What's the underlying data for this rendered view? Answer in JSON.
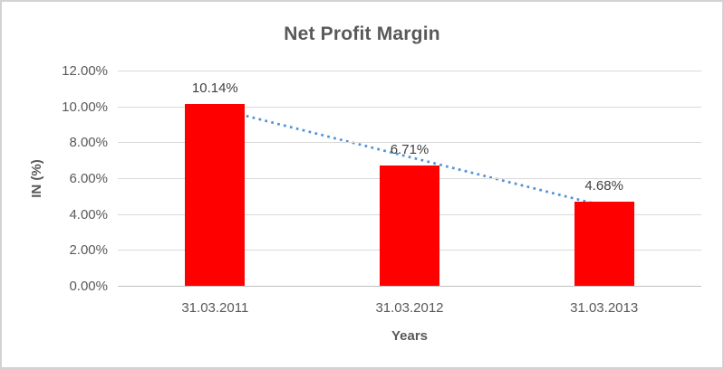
{
  "chart_data": {
    "type": "bar",
    "title": "Net Profit Margin",
    "xlabel": "Years",
    "ylabel": "IN (%)",
    "categories": [
      "31.03.2011",
      "31.03.2012",
      "31.03.2013"
    ],
    "values": [
      10.14,
      6.71,
      4.68
    ],
    "data_labels": [
      "10.14%",
      "6.71%",
      "4.68%"
    ],
    "ylim": [
      0,
      12
    ],
    "ytick_step": 2,
    "ytick_labels": [
      "0.00%",
      "2.00%",
      "4.00%",
      "6.00%",
      "8.00%",
      "10.00%",
      "12.00%"
    ],
    "grid": true,
    "legend": "none",
    "trendline": {
      "type": "linear",
      "style": "dotted"
    },
    "colors": {
      "bar": "#fe0000",
      "trendline": "#4e92d8",
      "title": "#595959",
      "tick_label": "#595959",
      "data_label": "#404040",
      "gridline": "#d9d9d9",
      "axis_line": "#bfbfbf",
      "background": "#ffffff",
      "frame_border": "#d2d2d2"
    }
  }
}
